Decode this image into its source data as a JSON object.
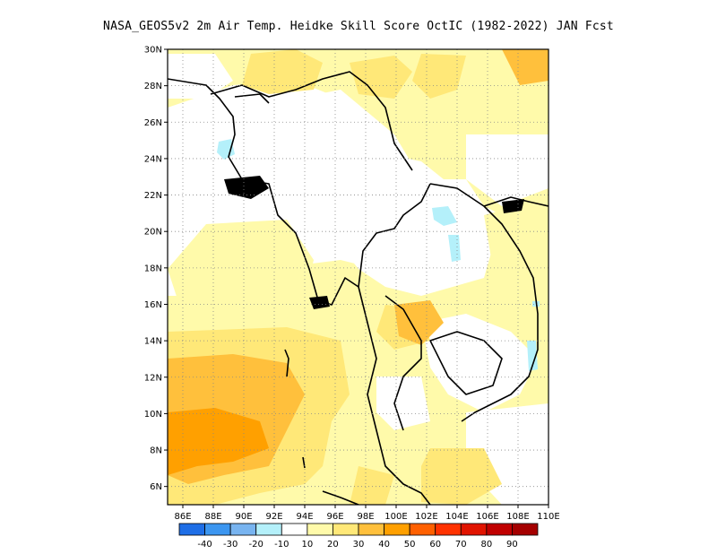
{
  "title": "NASA_GEOS5v2  2m Air Temp. Heidke Skill Score OctIC (1982-2022) JAN Fcst",
  "map": {
    "lat_ticks": [
      "30N",
      "28N",
      "26N",
      "24N",
      "22N",
      "20N",
      "18N",
      "16N",
      "14N",
      "12N",
      "10N",
      "8N",
      "6N"
    ],
    "lon_ticks": [
      "86E",
      "88E",
      "90E",
      "92E",
      "94E",
      "96E",
      "98E",
      "100E",
      "102E",
      "104E",
      "106E",
      "108E",
      "110E"
    ],
    "lon_range": [
      85,
      110
    ],
    "lat_range": [
      5,
      30
    ],
    "gridlines": "dotted",
    "field": "Heidke Skill Score"
  },
  "colorbar": {
    "colors": [
      "#1e6ee6",
      "#3c96f0",
      "#78b4f0",
      "#b4f0fa",
      "#ffffff",
      "#fffaaa",
      "#ffe878",
      "#ffc03c",
      "#ffa000",
      "#ff6000",
      "#ff3200",
      "#e11400",
      "#c00000",
      "#a50000"
    ],
    "tick_labels": [
      "-40",
      "-30",
      "-20",
      "-10",
      "10",
      "20",
      "30",
      "40",
      "50",
      "60",
      "70",
      "80",
      "90"
    ]
  }
}
